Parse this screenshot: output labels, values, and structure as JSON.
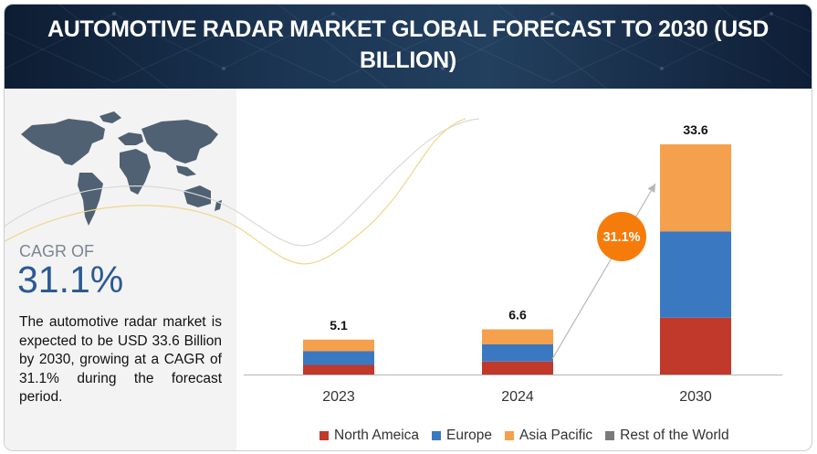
{
  "header": {
    "title": "AUTOMOTIVE RADAR MARKET GLOBAL FORECAST TO 2030 (USD BILLION)"
  },
  "left_panel": {
    "cagr_label": "CAGR OF",
    "cagr_value": "31.1%",
    "description": "The automotive radar market is expected to be USD 33.6 Billion by 2030, growing at a CAGR of 31.1% during the forecast period."
  },
  "chart_data": {
    "type": "bar",
    "stacked": true,
    "title": "AUTOMOTIVE RADAR MARKET GLOBAL FORECAST TO 2030 (USD BILLION)",
    "categories": [
      "2023",
      "2024",
      "2030"
    ],
    "totals": [
      "5.1",
      "6.6",
      "33.6"
    ],
    "total_values": [
      5.1,
      6.6,
      33.6
    ],
    "series": [
      {
        "name": "North Ameica",
        "color": "#c0392b",
        "values": [
          1.4,
          1.9,
          8.3
        ]
      },
      {
        "name": "Europe",
        "color": "#3b78c2",
        "values": [
          2.0,
          2.5,
          12.6
        ]
      },
      {
        "name": "Asia Pacific",
        "color": "#f5a04d",
        "values": [
          1.7,
          2.2,
          12.7
        ]
      },
      {
        "name": "Rest of the World",
        "color": "#7a7a7a",
        "values": [
          0,
          0,
          0
        ]
      }
    ],
    "ylim": [
      0,
      34
    ],
    "xlabel": "",
    "ylabel": "",
    "cagr_badge": "31.1%",
    "badge_color": "#f57c0a",
    "legend_position": "bottom"
  }
}
